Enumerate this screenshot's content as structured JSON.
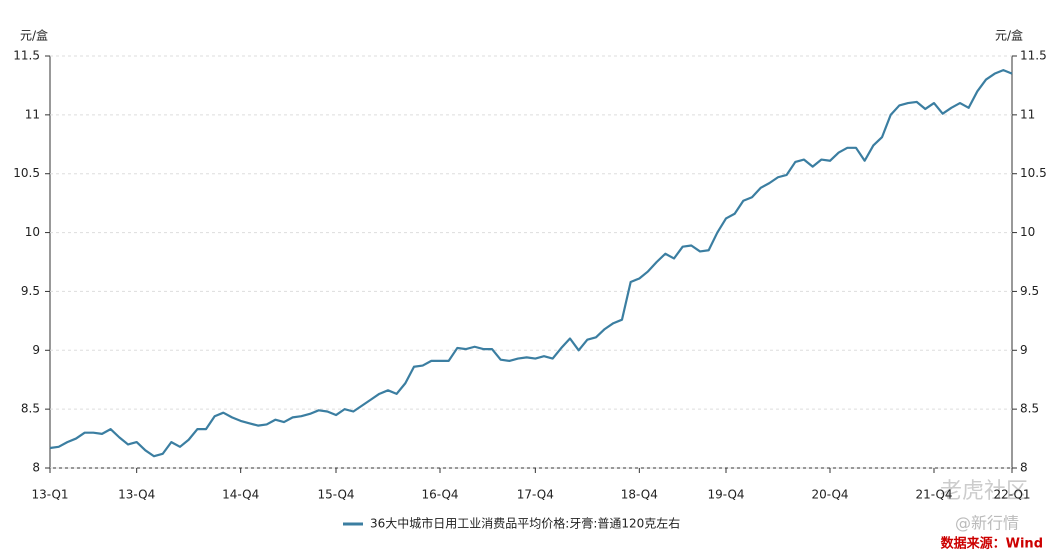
{
  "chart_data": {
    "type": "line",
    "y_unit_left": "元/盒",
    "y_unit_right": "元/盒",
    "categories": [
      "13-Q1",
      null,
      null,
      null,
      null,
      null,
      null,
      null,
      null,
      null,
      "13-Q4",
      null,
      null,
      null,
      null,
      null,
      null,
      null,
      null,
      null,
      null,
      null,
      "14-Q4",
      null,
      null,
      null,
      null,
      null,
      null,
      null,
      null,
      null,
      null,
      "15-Q4",
      null,
      null,
      null,
      null,
      null,
      null,
      null,
      null,
      null,
      null,
      null,
      "16-Q4",
      null,
      null,
      null,
      null,
      null,
      null,
      null,
      null,
      null,
      null,
      "17-Q4",
      null,
      null,
      null,
      null,
      null,
      null,
      null,
      null,
      null,
      null,
      null,
      "18-Q4",
      null,
      null,
      null,
      null,
      null,
      null,
      null,
      null,
      null,
      "19-Q4",
      null,
      null,
      null,
      null,
      null,
      null,
      null,
      null,
      null,
      null,
      null,
      "20-Q4",
      null,
      null,
      null,
      null,
      null,
      null,
      null,
      null,
      null,
      null,
      null,
      "21-Q4",
      null,
      null,
      null,
      null,
      null,
      null,
      null,
      null,
      "22-Q1"
    ],
    "series": [
      {
        "name": "36大中城市日用工业消费品平均价格:牙膏:普通120克左右",
        "color": "#3b7ea1",
        "values": [
          8.17,
          8.18,
          8.22,
          8.25,
          8.3,
          8.3,
          8.29,
          8.33,
          8.26,
          8.2,
          8.22,
          8.15,
          8.1,
          8.12,
          8.22,
          8.18,
          8.24,
          8.33,
          8.33,
          8.44,
          8.47,
          8.43,
          8.4,
          8.38,
          8.36,
          8.37,
          8.41,
          8.39,
          8.43,
          8.44,
          8.46,
          8.49,
          8.48,
          8.45,
          8.5,
          8.48,
          8.53,
          8.58,
          8.63,
          8.66,
          8.63,
          8.72,
          8.86,
          8.87,
          8.91,
          8.91,
          8.91,
          9.02,
          9.01,
          9.03,
          9.01,
          9.01,
          8.92,
          8.91,
          8.93,
          8.94,
          8.93,
          8.95,
          8.93,
          9.02,
          9.1,
          9.0,
          9.09,
          9.11,
          9.18,
          9.23,
          9.26,
          9.58,
          9.61,
          9.67,
          9.75,
          9.82,
          9.78,
          9.88,
          9.89,
          9.84,
          9.85,
          10.0,
          10.12,
          10.16,
          10.27,
          10.3,
          10.38,
          10.42,
          10.47,
          10.49,
          10.6,
          10.62,
          10.56,
          10.62,
          10.61,
          10.68,
          10.72,
          10.72,
          10.61,
          10.74,
          10.81,
          11.0,
          11.08,
          11.1,
          11.11,
          11.05,
          11.1,
          11.01,
          11.06,
          11.1,
          11.06,
          11.2,
          11.3,
          11.35,
          11.38,
          11.35
        ]
      }
    ],
    "ylim": [
      8,
      11.5
    ],
    "yticks": [
      8,
      8.5,
      9,
      9.5,
      10,
      10.5,
      11,
      11.5
    ],
    "y2lim": [
      8,
      11.5
    ],
    "y2ticks": [
      8,
      8.5,
      9,
      9.5,
      10,
      10.5,
      11,
      11.5
    ],
    "grid": true,
    "source": "数据来源：Wind",
    "watermarks": [
      "老虎社区",
      "@新行情"
    ]
  }
}
